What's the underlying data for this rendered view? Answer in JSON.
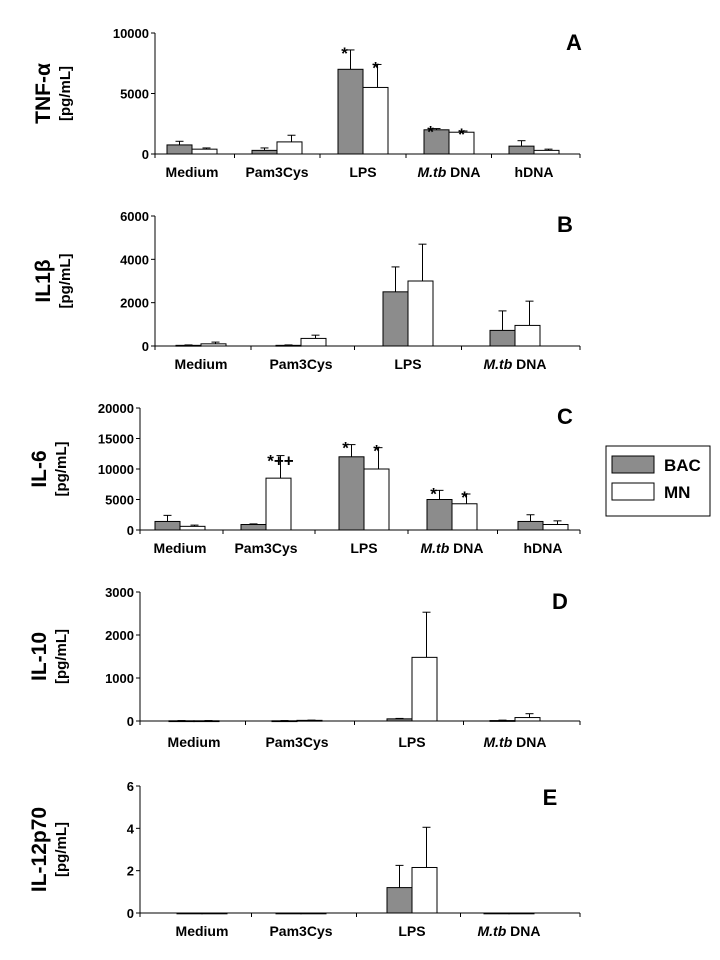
{
  "colors": {
    "BAC": "#8c8c8c",
    "MN": "#ffffff",
    "axis": "#000000"
  },
  "legend": {
    "position": "right",
    "entries": [
      {
        "series": "BAC",
        "label": "BAC"
      },
      {
        "series": "MN",
        "label": "MN"
      }
    ]
  },
  "chart_data": [
    {
      "type": "bar",
      "panel": "A",
      "ylabel": "TNF-α",
      "yunit": "[pg/mL]",
      "ylim": [
        0,
        10000
      ],
      "yticks": [
        "0",
        "5000",
        "10000"
      ],
      "categories": [
        {
          "label": "Medium"
        },
        {
          "label": "Pam3Cys"
        },
        {
          "label": "LPS"
        },
        {
          "label": "DNA",
          "italic_prefix": "M.tb"
        },
        {
          "label": "hDNA"
        }
      ],
      "series": [
        {
          "name": "BAC",
          "values": [
            750,
            300,
            7000,
            2000,
            650
          ],
          "errors": [
            300,
            200,
            1600,
            100,
            450
          ],
          "marks": [
            "",
            "",
            "*",
            "*",
            ""
          ]
        },
        {
          "name": "MN",
          "values": [
            400,
            1000,
            5500,
            1800,
            300
          ],
          "errors": [
            100,
            550,
            1900,
            100,
            100
          ],
          "marks": [
            "",
            "",
            "*",
            "*",
            ""
          ]
        }
      ]
    },
    {
      "type": "bar",
      "panel": "B",
      "ylabel": "IL1β",
      "yunit": "[pg/mL]",
      "ylim": [
        0,
        6000
      ],
      "yticks": [
        "0",
        "2000",
        "4000",
        "6000"
      ],
      "categories": [
        {
          "label": "Medium"
        },
        {
          "label": "Pam3Cys"
        },
        {
          "label": "LPS"
        },
        {
          "label": "DNA",
          "italic_prefix": "M.tb"
        }
      ],
      "series": [
        {
          "name": "BAC",
          "values": [
            30,
            30,
            2500,
            720
          ],
          "errors": [
            20,
            20,
            1150,
            900
          ],
          "marks": [
            "",
            "",
            "",
            ""
          ]
        },
        {
          "name": "MN",
          "values": [
            100,
            350,
            3000,
            950
          ],
          "errors": [
            80,
            150,
            1700,
            1120
          ],
          "marks": [
            "",
            "",
            "",
            ""
          ]
        }
      ]
    },
    {
      "type": "bar",
      "panel": "C",
      "ylabel": "IL-6",
      "yunit": "[pg/mL]",
      "ylim": [
        0,
        20000
      ],
      "yticks": [
        "0",
        "5000",
        "10000",
        "15000",
        "20000"
      ],
      "categories": [
        {
          "label": "Medium"
        },
        {
          "label": "Pam3Cys"
        },
        {
          "label": "LPS"
        },
        {
          "label": "DNA",
          "italic_prefix": "M.tb"
        },
        {
          "label": "hDNA"
        }
      ],
      "series": [
        {
          "name": "BAC",
          "values": [
            1400,
            900,
            12000,
            5000,
            1400
          ],
          "errors": [
            1000,
            100,
            2000,
            1500,
            1100
          ],
          "marks": [
            "",
            "",
            "*",
            "*",
            ""
          ]
        },
        {
          "name": "MN",
          "values": [
            600,
            8500,
            10000,
            4300,
            900
          ],
          "errors": [
            200,
            3700,
            3500,
            1600,
            600
          ],
          "marks": [
            "",
            "*++",
            "*",
            "*",
            ""
          ]
        }
      ]
    },
    {
      "type": "bar",
      "panel": "D",
      "ylabel": "IL-10",
      "yunit": "[pg/mL]",
      "ylim": [
        0,
        3000
      ],
      "yticks": [
        "0",
        "1000",
        "2000",
        "3000"
      ],
      "categories": [
        {
          "label": "Medium"
        },
        {
          "label": "Pam3Cys"
        },
        {
          "label": "LPS"
        },
        {
          "label": "DNA",
          "italic_prefix": "M.tb"
        }
      ],
      "series": [
        {
          "name": "BAC",
          "values": [
            5,
            5,
            50,
            10
          ],
          "errors": [
            5,
            5,
            10,
            10
          ],
          "marks": [
            "",
            "",
            "",
            ""
          ]
        },
        {
          "name": "MN",
          "values": [
            5,
            15,
            1480,
            80
          ],
          "errors": [
            5,
            5,
            1050,
            90
          ],
          "marks": [
            "",
            "",
            "",
            ""
          ]
        }
      ]
    },
    {
      "type": "bar",
      "panel": "E",
      "ylabel": "IL-12p70",
      "yunit": "[pg/mL]",
      "ylim": [
        0,
        6
      ],
      "yticks": [
        "0",
        "2",
        "4",
        "6"
      ],
      "categories": [
        {
          "label": "Medium"
        },
        {
          "label": "Pam3Cys"
        },
        {
          "label": "LPS"
        },
        {
          "label": "DNA",
          "italic_prefix": "M.tb"
        }
      ],
      "series": [
        {
          "name": "BAC",
          "values": [
            0,
            0,
            1.2,
            0
          ],
          "errors": [
            0,
            0,
            1.05,
            0
          ],
          "marks": [
            "",
            "",
            "",
            ""
          ]
        },
        {
          "name": "MN",
          "values": [
            0,
            0,
            2.15,
            0
          ],
          "errors": [
            0,
            0,
            1.9,
            0
          ],
          "marks": [
            "",
            "",
            "",
            ""
          ]
        }
      ]
    }
  ]
}
